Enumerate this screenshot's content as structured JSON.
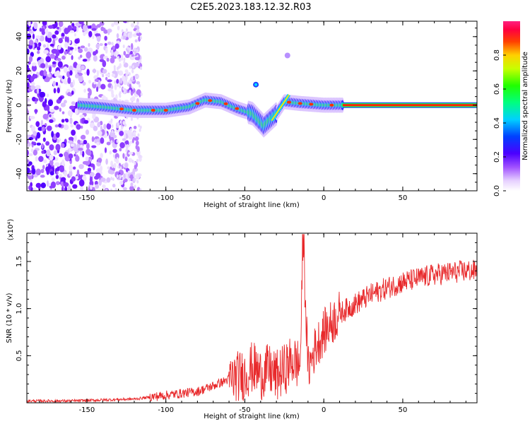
{
  "title": "C2E5.2023.183.12.32.R03",
  "colors": {
    "snr_line": "#e8292b",
    "background": "#ffffff",
    "frame": "#000000"
  },
  "colorbar": {
    "label": "Normalized spectral amplitude",
    "ticks": [
      "0.0",
      "0.2",
      "0.4",
      "0.6",
      "0.8"
    ],
    "range": [
      0,
      1
    ],
    "colormap": "rainbow (white-purple-blue-cyan-green-yellow-red-pink)"
  },
  "chart_data": [
    {
      "type": "heatmap",
      "xlabel": "Height of straight line (km)",
      "ylabel": "Frequency (Hz)",
      "xlim": [
        -188,
        97
      ],
      "ylim": [
        -50,
        49
      ],
      "xticks": [
        -150,
        -100,
        -50,
        0,
        50
      ],
      "yticks": [
        -40,
        -20,
        0,
        20,
        40
      ],
      "description_points": {
        "noise_region_x": [
          -188,
          -120
        ],
        "band_center_y": 0,
        "band_segments": [
          {
            "x": -155,
            "y": 0
          },
          {
            "x": -140,
            "y": -1
          },
          {
            "x": -120,
            "y": -3
          },
          {
            "x": -100,
            "y": -3
          },
          {
            "x": -85,
            "y": -1
          },
          {
            "x": -75,
            "y": 3
          },
          {
            "x": -65,
            "y": 2
          },
          {
            "x": -55,
            "y": -2
          },
          {
            "x": -45,
            "y": -5
          },
          {
            "x": -38,
            "y": -12
          },
          {
            "x": -30,
            "y": -5
          },
          {
            "x": -25,
            "y": 2
          },
          {
            "x": -15,
            "y": 1
          },
          {
            "x": 0,
            "y": 0
          },
          {
            "x": 12,
            "y": 0
          },
          {
            "x": 97,
            "y": 0
          }
        ],
        "blobs": [
          {
            "x": -43,
            "y": 12
          },
          {
            "x": -23,
            "y": 29
          }
        ]
      }
    },
    {
      "type": "line",
      "xlabel": "Height of straight line (km)",
      "ylabel": "SNR (10 * v/v)",
      "exponent_label": "(x10⁴)",
      "xlim": [
        -188,
        97
      ],
      "ylim": [
        0,
        1.8
      ],
      "xticks": [
        -150,
        -100,
        -50,
        0,
        50
      ],
      "yticks": [
        0.5,
        1.0,
        1.5
      ],
      "ytick_labels": [
        "0.5",
        "1.0",
        "1.5"
      ],
      "series": [
        {
          "x": [
            -188,
            -160,
            -140,
            -120,
            -110,
            -100,
            -90,
            -80,
            -70,
            -60,
            -50,
            -45,
            -40,
            -35,
            -30,
            -25,
            -20,
            -15,
            -13,
            -10,
            -5,
            0,
            5,
            10,
            20,
            30,
            40,
            50,
            60,
            70,
            80,
            90,
            97
          ],
          "y": [
            0.02,
            0.02,
            0.03,
            0.04,
            0.06,
            0.08,
            0.1,
            0.12,
            0.18,
            0.25,
            0.3,
            0.38,
            0.3,
            0.35,
            0.28,
            0.35,
            0.45,
            0.4,
            1.72,
            0.35,
            0.6,
            0.75,
            0.85,
            0.95,
            1.05,
            1.15,
            1.22,
            1.28,
            1.32,
            1.36,
            1.38,
            1.4,
            1.4
          ]
        }
      ]
    }
  ]
}
